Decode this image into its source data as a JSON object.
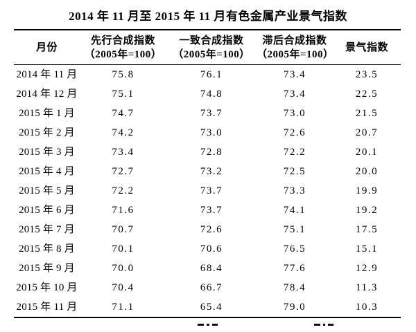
{
  "title": "2014 年 11 月至 2015 年 11 月有色金属产业景气指数",
  "table": {
    "columns": [
      {
        "label": "月份",
        "sub": ""
      },
      {
        "label": "先行合成指数",
        "sub": "（2005年=100）"
      },
      {
        "label": "一致合成指数",
        "sub": "（2005年=100）"
      },
      {
        "label": "滞后合成指数",
        "sub": "（2005年=100）"
      },
      {
        "label": "景气指数",
        "sub": ""
      }
    ],
    "rows": [
      [
        "2014 年 11 月",
        "75.8",
        "76.1",
        "73.4",
        "23.5"
      ],
      [
        "2014 年 12 月",
        "75.1",
        "74.8",
        "73.4",
        "22.5"
      ],
      [
        "2015 年 1 月",
        "74.7",
        "73.7",
        "73.0",
        "21.5"
      ],
      [
        "2015 年 2 月",
        "74.2",
        "73.0",
        "72.6",
        "20.7"
      ],
      [
        "2015 年 3 月",
        "73.4",
        "72.8",
        "72.2",
        "20.1"
      ],
      [
        "2015 年 4 月",
        "72.7",
        "73.2",
        "72.5",
        "20.0"
      ],
      [
        "2015 年 5 月",
        "72.2",
        "73.7",
        "73.3",
        "19.9"
      ],
      [
        "2015 年 6 月",
        "71.6",
        "73.7",
        "74.1",
        "19.2"
      ],
      [
        "2015 年 7 月",
        "70.7",
        "72.6",
        "75.1",
        "17.5"
      ],
      [
        "2015 年 8 月",
        "70.1",
        "70.6",
        "76.5",
        "15.1"
      ],
      [
        "2015 年 9 月",
        "70.0",
        "68.4",
        "77.6",
        "12.9"
      ],
      [
        "2015 年 10 月",
        "70.4",
        "66.7",
        "78.4",
        "11.3"
      ],
      [
        "2015 年 11 月",
        "71.1",
        "65.4",
        "79.0",
        "10.3"
      ]
    ]
  },
  "chart_data": {
    "type": "table",
    "title": "2014年11月至2015年11月有色金属产业景气指数",
    "categories": [
      "2014年11月",
      "2014年12月",
      "2015年1月",
      "2015年2月",
      "2015年3月",
      "2015年4月",
      "2015年5月",
      "2015年6月",
      "2015年7月",
      "2015年8月",
      "2015年9月",
      "2015年10月",
      "2015年11月"
    ],
    "series": [
      {
        "name": "先行合成指数（2005年=100）",
        "values": [
          75.8,
          75.1,
          74.7,
          74.2,
          73.4,
          72.7,
          72.2,
          71.6,
          70.7,
          70.1,
          70.0,
          70.4,
          71.1
        ]
      },
      {
        "name": "一致合成指数（2005年=100）",
        "values": [
          76.1,
          74.8,
          73.7,
          73.0,
          72.8,
          73.2,
          73.7,
          73.7,
          72.6,
          70.6,
          68.4,
          66.7,
          65.4
        ]
      },
      {
        "name": "滞后合成指数（2005年=100）",
        "values": [
          73.4,
          73.4,
          73.0,
          72.6,
          72.2,
          72.5,
          73.3,
          74.1,
          75.1,
          76.5,
          77.6,
          78.4,
          79.0
        ]
      },
      {
        "name": "景气指数",
        "values": [
          23.5,
          22.5,
          21.5,
          20.7,
          20.1,
          20.0,
          19.9,
          19.2,
          17.5,
          15.1,
          12.9,
          11.3,
          10.3
        ]
      }
    ]
  },
  "colors": {
    "background": "#ffffff",
    "text": "#000000",
    "rule": "#000000"
  }
}
